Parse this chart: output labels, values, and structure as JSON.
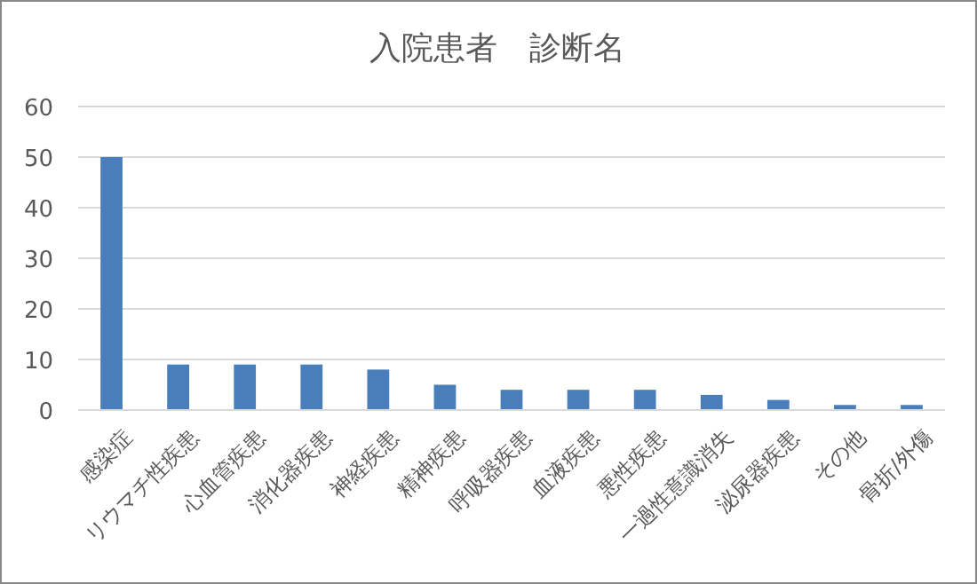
{
  "chart_data": {
    "type": "bar",
    "title": "入院患者　診断名",
    "categories": [
      "感染症",
      "リウマチ性疾患",
      "心血管疾患",
      "消化器疾患",
      "神経疾患",
      "精神疾患",
      "呼吸器疾患",
      "血液疾患",
      "悪性疾患",
      "一過性意識消失",
      "泌尿器疾患",
      "その他",
      "骨折/外傷"
    ],
    "values": [
      50,
      9,
      9,
      9,
      8,
      5,
      4,
      4,
      4,
      3,
      2,
      1,
      1
    ],
    "color": "#4a7ebb",
    "ylim": [
      0,
      60
    ],
    "yticks": [
      0,
      10,
      20,
      30,
      40,
      50,
      60
    ],
    "grid": "y"
  }
}
